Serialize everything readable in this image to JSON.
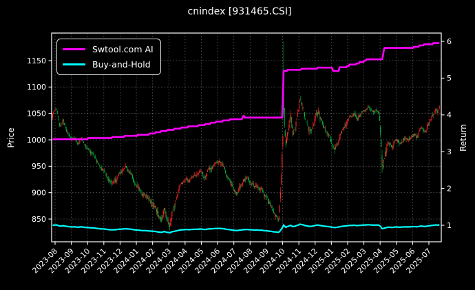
{
  "chart_data": {
    "type": "candlestick",
    "title": "cnindex [931465.CSI]",
    "legend": [
      {
        "label": "Swtool.com AI",
        "color": "#ff00ff"
      },
      {
        "label": "Buy-and-Hold",
        "color": "#00ffff"
      }
    ],
    "price_axis": {
      "label": "Price",
      "ticks": [
        850,
        900,
        950,
        1000,
        1050,
        1100,
        1150
      ],
      "range": [
        807,
        1203
      ]
    },
    "return_axis": {
      "label": "Return",
      "ticks": [
        1,
        2,
        3,
        4,
        5,
        6
      ],
      "range": [
        0.52,
        6.24
      ]
    },
    "x_axis": {
      "tick_labels": [
        "2023-08",
        "2023-09",
        "2023-10",
        "2023-11",
        "2023-12",
        "2024-01",
        "2024-02",
        "2024-03",
        "2024-04",
        "2024-05",
        "2024-06",
        "2024-07",
        "2024-08",
        "2024-09",
        "2024-10",
        "2024-11",
        "2024-12",
        "2025-01",
        "2025-02",
        "2025-03",
        "2025-04",
        "2025-05",
        "2025-06",
        "2025-07"
      ]
    },
    "colors": {
      "up_candle": "#ff2525",
      "down_candle": "#00b844",
      "ai_line": "#ff00ff",
      "bh_line": "#00ffff",
      "grid": "rgba(255,255,255,0.38)",
      "axis": "#ffffff",
      "text": "#ffffff",
      "background": "#000000"
    },
    "candles_per_month": 21,
    "t_range": [
      -0.15,
      23.65
    ],
    "series": {
      "price_close_anchors": [
        [
          -0.15,
          1048,
          6
        ],
        [
          0.1,
          1058,
          6
        ],
        [
          0.3,
          1022,
          7
        ],
        [
          0.5,
          1040,
          6
        ],
        [
          0.75,
          1012,
          6
        ],
        [
          1.0,
          1000,
          5
        ],
        [
          1.2,
          1006,
          5
        ],
        [
          1.4,
          990,
          6
        ],
        [
          1.6,
          1004,
          5
        ],
        [
          1.8,
          992,
          5
        ],
        [
          2.1,
          978,
          6
        ],
        [
          2.4,
          968,
          6
        ],
        [
          2.7,
          952,
          6
        ],
        [
          3.0,
          940,
          6
        ],
        [
          3.3,
          924,
          6
        ],
        [
          3.6,
          914,
          7
        ],
        [
          3.9,
          932,
          7
        ],
        [
          4.2,
          944,
          6
        ],
        [
          4.4,
          950,
          6
        ],
        [
          4.7,
          932,
          6
        ],
        [
          5.0,
          916,
          6
        ],
        [
          5.3,
          903,
          7
        ],
        [
          5.6,
          892,
          7
        ],
        [
          5.9,
          880,
          8
        ],
        [
          6.2,
          868,
          9
        ],
        [
          6.5,
          846,
          10
        ],
        [
          6.7,
          868,
          10
        ],
        [
          6.9,
          852,
          10
        ],
        [
          7.05,
          838,
          9
        ],
        [
          7.2,
          862,
          9
        ],
        [
          7.4,
          886,
          8
        ],
        [
          7.7,
          912,
          7
        ],
        [
          8.0,
          928,
          6
        ],
        [
          8.3,
          922,
          6
        ],
        [
          8.6,
          932,
          6
        ],
        [
          8.9,
          940,
          6
        ],
        [
          9.2,
          928,
          6
        ],
        [
          9.5,
          944,
          6
        ],
        [
          9.8,
          952,
          6
        ],
        [
          10.1,
          957,
          6
        ],
        [
          10.4,
          946,
          6
        ],
        [
          10.7,
          924,
          6
        ],
        [
          11.0,
          905,
          7
        ],
        [
          11.2,
          896,
          7
        ],
        [
          11.5,
          918,
          6
        ],
        [
          11.8,
          928,
          6
        ],
        [
          12.1,
          920,
          6
        ],
        [
          12.4,
          912,
          6
        ],
        [
          12.7,
          903,
          6
        ],
        [
          13.0,
          890,
          6
        ],
        [
          13.3,
          874,
          6
        ],
        [
          13.55,
          858,
          7
        ],
        [
          13.75,
          846,
          7
        ],
        [
          13.82,
          872,
          9
        ],
        [
          13.88,
          908,
          9
        ],
        [
          13.93,
          940,
          9
        ],
        [
          13.98,
          975,
          10
        ],
        [
          14.02,
          1008,
          11
        ],
        [
          14.1,
          1032,
          12
        ],
        [
          14.2,
          992,
          12
        ],
        [
          14.35,
          1022,
          11
        ],
        [
          14.5,
          1046,
          10
        ],
        [
          14.65,
          1002,
          10
        ],
        [
          14.8,
          1028,
          9
        ],
        [
          15.0,
          1062,
          9
        ],
        [
          15.1,
          1080,
          9
        ],
        [
          15.25,
          1062,
          8
        ],
        [
          15.4,
          1038,
          8
        ],
        [
          15.6,
          1014,
          8
        ],
        [
          15.8,
          1022,
          8
        ],
        [
          16.0,
          1044,
          8
        ],
        [
          16.2,
          1052,
          7
        ],
        [
          16.45,
          1032,
          7
        ],
        [
          16.7,
          1014,
          7
        ],
        [
          17.0,
          998,
          7
        ],
        [
          17.2,
          984,
          7
        ],
        [
          17.4,
          996,
          7
        ],
        [
          17.6,
          1012,
          6
        ],
        [
          17.85,
          1024,
          6
        ],
        [
          18.1,
          1040,
          6
        ],
        [
          18.35,
          1050,
          6
        ],
        [
          18.6,
          1042,
          6
        ],
        [
          18.85,
          1050,
          6
        ],
        [
          19.1,
          1056,
          6
        ],
        [
          19.35,
          1062,
          6
        ],
        [
          19.55,
          1050,
          6
        ],
        [
          19.75,
          1058,
          6
        ],
        [
          19.95,
          1048,
          7
        ],
        [
          20.05,
          1002,
          11
        ],
        [
          20.12,
          950,
          11
        ],
        [
          20.3,
          972,
          9
        ],
        [
          20.5,
          994,
          7
        ],
        [
          20.75,
          986,
          6
        ],
        [
          21.0,
          1000,
          6
        ],
        [
          21.25,
          994,
          6
        ],
        [
          21.5,
          1004,
          6
        ],
        [
          21.75,
          998,
          6
        ],
        [
          22.0,
          1010,
          6
        ],
        [
          22.25,
          1006,
          6
        ],
        [
          22.5,
          1020,
          6
        ],
        [
          22.75,
          1016,
          6
        ],
        [
          23.0,
          1030,
          6
        ],
        [
          23.2,
          1044,
          6
        ],
        [
          23.4,
          1062,
          7
        ],
        [
          23.55,
          1052,
          6
        ],
        [
          23.65,
          1060,
          6
        ]
      ],
      "spike_candle": {
        "t": 14.06,
        "open": 1092,
        "high": 1186,
        "low": 1042,
        "close": 1058
      },
      "ai_return_anchors": [
        [
          -0.15,
          3.34
        ],
        [
          0.5,
          3.34
        ],
        [
          1,
          3.35
        ],
        [
          1.5,
          3.35
        ],
        [
          2,
          3.37
        ],
        [
          2.5,
          3.37
        ],
        [
          3,
          3.39
        ],
        [
          3.5,
          3.4
        ],
        [
          4,
          3.42
        ],
        [
          4.5,
          3.44
        ],
        [
          5,
          3.46
        ],
        [
          5.5,
          3.47
        ],
        [
          6,
          3.51
        ],
        [
          6.3,
          3.54
        ],
        [
          6.6,
          3.57
        ],
        [
          7,
          3.6
        ],
        [
          7.4,
          3.63
        ],
        [
          7.8,
          3.66
        ],
        [
          8.2,
          3.69
        ],
        [
          8.6,
          3.71
        ],
        [
          9,
          3.73
        ],
        [
          9.4,
          3.77
        ],
        [
          9.8,
          3.81
        ],
        [
          10.2,
          3.84
        ],
        [
          10.6,
          3.87
        ],
        [
          11,
          3.9
        ],
        [
          11.5,
          3.9
        ],
        [
          11.58,
          3.97
        ],
        [
          11.72,
          3.91
        ],
        [
          12,
          3.92
        ],
        [
          12.5,
          3.92
        ],
        [
          13,
          3.92
        ],
        [
          13.5,
          3.92
        ],
        [
          13.95,
          3.93
        ],
        [
          14.0,
          3.95
        ],
        [
          14.04,
          5.19
        ],
        [
          14.2,
          5.21
        ],
        [
          14.4,
          5.24
        ],
        [
          14.7,
          5.25
        ],
        [
          15,
          5.25
        ],
        [
          15.3,
          5.26
        ],
        [
          15.7,
          5.27
        ],
        [
          16,
          5.28
        ],
        [
          16.3,
          5.29
        ],
        [
          16.6,
          5.3
        ],
        [
          16.9,
          5.29
        ],
        [
          17.05,
          5.29
        ],
        [
          17.1,
          5.19
        ],
        [
          17.45,
          5.19
        ],
        [
          17.5,
          5.3
        ],
        [
          17.8,
          5.31
        ],
        [
          18,
          5.33
        ],
        [
          18.15,
          5.38
        ],
        [
          18.5,
          5.39
        ],
        [
          18.75,
          5.44
        ],
        [
          19,
          5.47
        ],
        [
          19.2,
          5.52
        ],
        [
          19.5,
          5.54
        ],
        [
          20.0,
          5.54
        ],
        [
          20.15,
          5.54
        ],
        [
          20.25,
          5.82
        ],
        [
          20.5,
          5.82
        ],
        [
          21,
          5.83
        ],
        [
          21.5,
          5.83
        ],
        [
          21.9,
          5.84
        ],
        [
          22.2,
          5.86
        ],
        [
          22.5,
          5.9
        ],
        [
          22.7,
          5.92
        ],
        [
          22.9,
          5.93
        ],
        [
          23.05,
          5.95
        ],
        [
          23.2,
          5.93
        ],
        [
          23.35,
          5.98
        ],
        [
          23.45,
          5.95
        ],
        [
          23.55,
          5.97
        ],
        [
          23.65,
          5.98
        ]
      ],
      "buy_and_hold_start": 1.0
    }
  }
}
